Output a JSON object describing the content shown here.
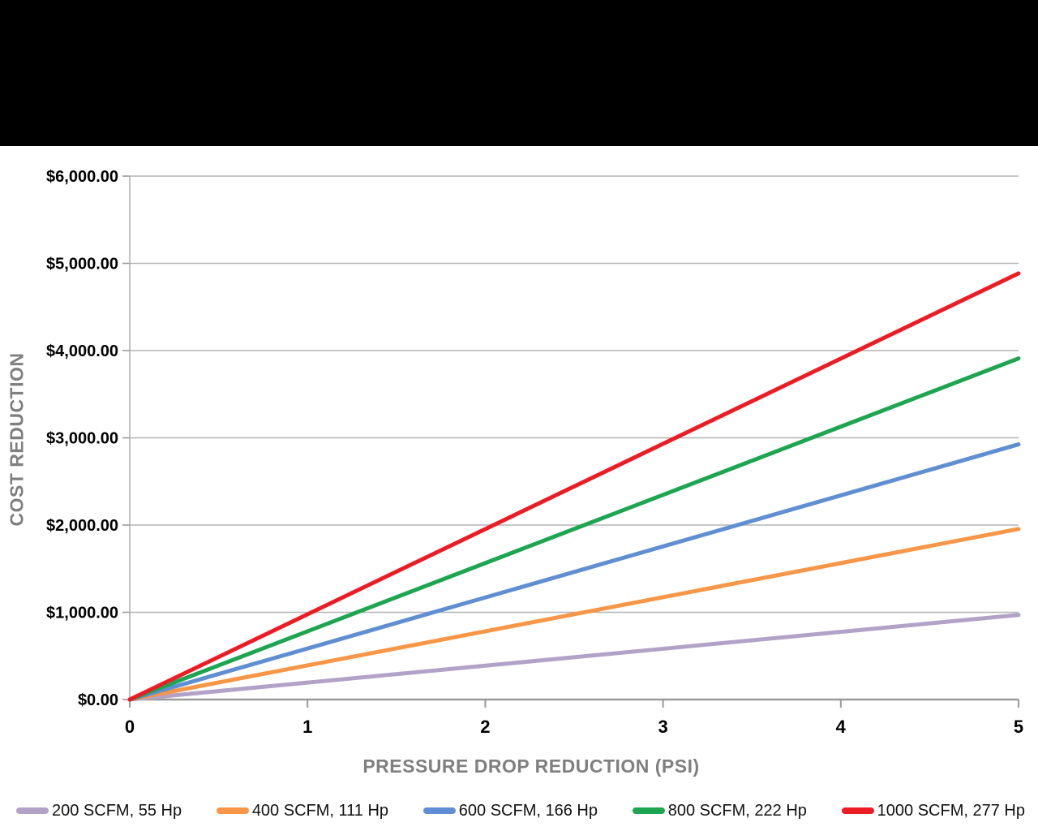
{
  "page": {
    "background_color": "#ffffff",
    "top_band_color": "#000000"
  },
  "styles": {
    "grid_color": "#b3b3b3",
    "axis_color": "#9a9a9a",
    "tick_label_color": "#000000",
    "axis_title_color": "#7f7f7f",
    "legend_text_color": "#111111",
    "series_stroke_width": 5
  },
  "chart_data": {
    "type": "line",
    "title": "",
    "xlabel": "PRESSURE DROP REDUCTION (PSI)",
    "ylabel": "COST REDUCTION",
    "xlim": [
      0,
      5
    ],
    "ylim": [
      0,
      6000
    ],
    "x": [
      0,
      1,
      2,
      3,
      4,
      5
    ],
    "x_tick_labels": [
      "0",
      "1",
      "2",
      "3",
      "4",
      "5"
    ],
    "y_ticks": [
      0,
      1000,
      2000,
      3000,
      4000,
      5000,
      6000
    ],
    "y_tick_labels": [
      "$0.00",
      "$1,000.00",
      "$2,000.00",
      "$3,000.00",
      "$4,000.00",
      "$5,000.00",
      "$6,000.00"
    ],
    "grid": "horizontal",
    "legend_position": "bottom",
    "series": [
      {
        "name": "200 SCFM, 55 Hp",
        "color": "#b3a2c7",
        "values": [
          0,
          194,
          388,
          582,
          776,
          970
        ]
      },
      {
        "name": "400 SCFM, 111 Hp",
        "color": "#f79646",
        "values": [
          0,
          391,
          782,
          1173,
          1564,
          1955
        ]
      },
      {
        "name": "600 SCFM, 166 Hp",
        "color": "#5f8fd2",
        "values": [
          0,
          585,
          1170,
          1755,
          2340,
          2925
        ]
      },
      {
        "name": "800 SCFM, 222 Hp",
        "color": "#1ea551",
        "values": [
          0,
          782,
          1564,
          2346,
          3128,
          3910
        ]
      },
      {
        "name": "1000 SCFM, 277 Hp",
        "color": "#ec1c24",
        "values": [
          0,
          977,
          1954,
          2931,
          3908,
          4885
        ]
      }
    ]
  }
}
